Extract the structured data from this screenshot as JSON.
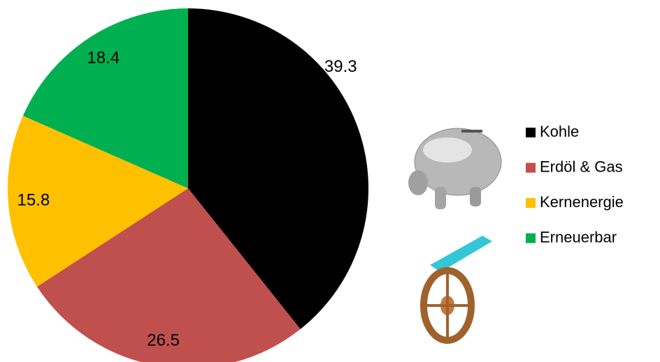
{
  "chart_data": {
    "type": "pie",
    "categories": [
      "Kohle",
      "Erdöl & Gas",
      "Kernenergie",
      "Erneuerbar"
    ],
    "values": [
      39.3,
      26.5,
      15.8,
      18.4
    ],
    "colors": [
      "#000000",
      "#c0504d",
      "#ffc000",
      "#00b050"
    ],
    "legend": "right"
  }
}
